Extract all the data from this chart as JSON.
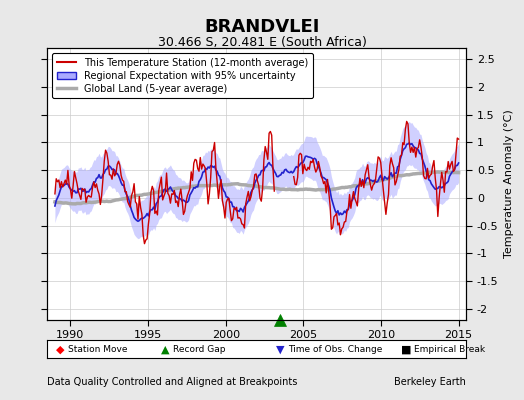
{
  "title": "BRANDVLEI",
  "subtitle": "30.466 S, 20.481 E (South Africa)",
  "xlabel_footer": "Data Quality Controlled and Aligned at Breakpoints",
  "xlabel_footer_right": "Berkeley Earth",
  "ylabel": "Temperature Anomaly (°C)",
  "xlim": [
    1988.5,
    2015.5
  ],
  "ylim": [
    -2.2,
    2.7
  ],
  "yticks": [
    -2,
    -1.5,
    -1,
    -0.5,
    0,
    0.5,
    1,
    1.5,
    2,
    2.5
  ],
  "xticks": [
    1990,
    1995,
    2000,
    2005,
    2010,
    2015
  ],
  "bg_color": "#e8e8e8",
  "plot_bg_color": "#ffffff",
  "record_gap_x": 2003.5,
  "record_gap_y": -2.2
}
